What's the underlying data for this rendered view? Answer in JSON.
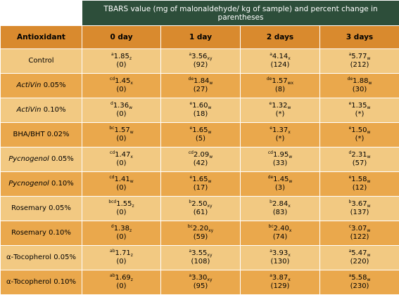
{
  "header": {
    "title": "TBARS value (mg of malonaldehyde/ kg of sample) and percent change in parentheses"
  },
  "columns": [
    "Antioxidant",
    "0 day",
    "1 day",
    "2 days",
    "3 days"
  ],
  "rows": [
    {
      "name": "Control",
      "conc": "",
      "italic": false,
      "cells": [
        {
          "pre": "a",
          "val": "1.85",
          "post": "z",
          "pct": "(0)"
        },
        {
          "pre": "a",
          "val": "3.56",
          "post": "xy",
          "pct": "(92)"
        },
        {
          "pre": "a",
          "val": "4.14",
          "post": "x",
          "pct": "(124)"
        },
        {
          "pre": "a",
          "val": "5.77",
          "post": "w",
          "pct": "(212)"
        }
      ]
    },
    {
      "name": "ActiVin",
      "conc": " 0.05%",
      "italic": true,
      "cells": [
        {
          "pre": "cd",
          "val": "1.45",
          "post": "x",
          "pct": "(0)"
        },
        {
          "pre": "de",
          "val": "1.84",
          "post": "w",
          "pct": "(27)"
        },
        {
          "pre": "de",
          "val": "1.57",
          "post": "wx",
          "pct": "(8)"
        },
        {
          "pre": "de",
          "val": "1.88",
          "post": "w",
          "pct": "(30)"
        }
      ]
    },
    {
      "name": "ActiVin",
      "conc": " 0.10%",
      "italic": true,
      "cells": [
        {
          "pre": "d",
          "val": "1.36",
          "post": "w",
          "pct": "(0)"
        },
        {
          "pre": "e",
          "val": "1.60",
          "post": "w",
          "pct": "(18)"
        },
        {
          "pre": "e",
          "val": "1.32",
          "post": "w",
          "pct": "(*)"
        },
        {
          "pre": "e",
          "val": "1.35",
          "post": "w",
          "pct": "(*)"
        }
      ]
    },
    {
      "name": "BHA/BHT",
      "conc": " 0.02%",
      "italic": false,
      "cells": [
        {
          "pre": "bc",
          "val": "1.57",
          "post": "w",
          "pct": "(0)"
        },
        {
          "pre": "e",
          "val": "1.65",
          "post": "w",
          "pct": "(5)"
        },
        {
          "pre": "e",
          "val": "1.37",
          "post": "x",
          "pct": "(*)"
        },
        {
          "pre": "e",
          "val": "1.50",
          "post": "w",
          "pct": "(*)"
        }
      ]
    },
    {
      "name": "Pycnogenol",
      "conc": " 0.05%",
      "italic": true,
      "cells": [
        {
          "pre": "cd",
          "val": "1.47",
          "post": "x",
          "pct": "(0)"
        },
        {
          "pre": "cd",
          "val": "2.09",
          "post": "w",
          "pct": "(42)"
        },
        {
          "pre": "cd",
          "val": "1.95",
          "post": "w",
          "pct": "(33)"
        },
        {
          "pre": "d",
          "val": "2.31",
          "post": "w",
          "pct": "(57)"
        }
      ]
    },
    {
      "name": "Pycnogenol",
      "conc": " 0.10%",
      "italic": true,
      "cells": [
        {
          "pre": "cd",
          "val": "1.41",
          "post": "w",
          "pct": "(0)"
        },
        {
          "pre": "e",
          "val": "1.65",
          "post": "w",
          "pct": "(17)"
        },
        {
          "pre": "de",
          "val": "1.45",
          "post": "w",
          "pct": "(3)"
        },
        {
          "pre": "e",
          "val": "1.58",
          "post": "w",
          "pct": "(12)"
        }
      ]
    },
    {
      "name": "Rosemary",
      "conc": " 0.05%",
      "italic": false,
      "cells": [
        {
          "pre": "bcd",
          "val": "1.55",
          "post": "z",
          "pct": "(0)"
        },
        {
          "pre": "b",
          "val": "2.50",
          "post": "xy",
          "pct": "(61)"
        },
        {
          "pre": "b",
          "val": "2.84",
          "post": "x",
          "pct": "(83)"
        },
        {
          "pre": "b",
          "val": "3.67",
          "post": "w",
          "pct": "(137)"
        }
      ]
    },
    {
      "name": "Rosemary",
      "conc": " 0.10%",
      "italic": false,
      "cells": [
        {
          "pre": "d",
          "val": "1.38",
          "post": "z",
          "pct": "(0)"
        },
        {
          "pre": "bc",
          "val": "2.20",
          "post": "xy",
          "pct": "(59)"
        },
        {
          "pre": "bc",
          "val": "2.40",
          "post": "x",
          "pct": "(74)"
        },
        {
          "pre": "c",
          "val": "3.07",
          "post": "w",
          "pct": "(122)"
        }
      ]
    },
    {
      "name": "α-Tocopherol",
      "conc": " 0.05%",
      "italic": false,
      "cells": [
        {
          "pre": "ab",
          "val": "1.71",
          "post": "z",
          "pct": "(0)"
        },
        {
          "pre": "a",
          "val": "3.55",
          "post": "xy",
          "pct": "(108)"
        },
        {
          "pre": "a",
          "val": "3.93",
          "post": "x",
          "pct": "(130)"
        },
        {
          "pre": "a",
          "val": "5.47",
          "post": "w",
          "pct": "(220)"
        }
      ]
    },
    {
      "name": "α-Tocopherol",
      "conc": " 0.10%",
      "italic": false,
      "cells": [
        {
          "pre": "ab",
          "val": "1.69",
          "post": "z",
          "pct": "(0)"
        },
        {
          "pre": "a",
          "val": "3.30",
          "post": "xy",
          "pct": "(95)"
        },
        {
          "pre": "a",
          "val": "3.87",
          "post": "x",
          "pct": "(129)"
        },
        {
          "pre": "a",
          "val": "5.58",
          "post": "w",
          "pct": "(230)"
        }
      ]
    }
  ]
}
